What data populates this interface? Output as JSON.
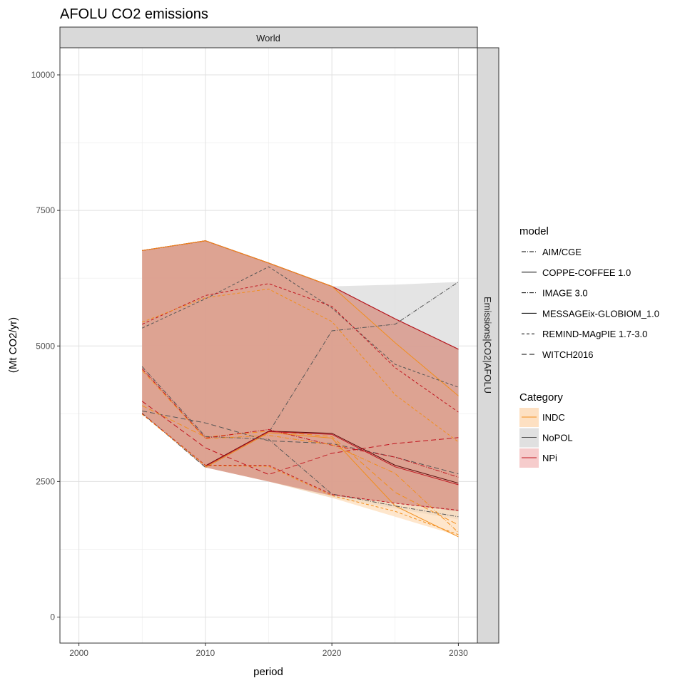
{
  "chart_data": {
    "type": "line",
    "title": "AFOLU CO2 emissions",
    "facet_top": "World",
    "facet_right": "Emissions|CO2|AFOLU",
    "xlabel": "period",
    "ylabel": "(Mt CO2/yr)",
    "xlim": [
      1998.5,
      2031.5
    ],
    "ylim": [
      -480,
      10500
    ],
    "x_ticks": [
      2000,
      2010,
      2020,
      2030
    ],
    "y_ticks": [
      0,
      2500,
      5000,
      7500,
      10000
    ],
    "grid": true,
    "legend_placement": "right",
    "model_legend": {
      "title": "model",
      "items": [
        {
          "label": "AIM/CGE",
          "dash": "6 2 1 2"
        },
        {
          "label": "COPPE-COFFEE 1.0",
          "dash": ""
        },
        {
          "label": "IMAGE 3.0",
          "dash": "6 2 1 2"
        },
        {
          "label": "MESSAGEix-GLOBIOM_1.0",
          "dash": ""
        },
        {
          "label": "REMIND-MAgPIE 1.7-3.0",
          "dash": "4 3"
        },
        {
          "label": "WITCH2016",
          "dash": "7 4"
        }
      ]
    },
    "category_legend": {
      "title": "Category",
      "items": [
        {
          "label": "INDC",
          "line": "#f28e1c",
          "fill": "#fde0c2"
        },
        {
          "label": "NoPOL",
          "line": "#555555",
          "fill": "#e0e0e0"
        },
        {
          "label": "NPi",
          "line": "#c0141e",
          "fill": "#f6cccc"
        }
      ]
    },
    "ribbons": [
      {
        "category": "NoPOL",
        "color": "#d9d9d9",
        "opacity": 0.7,
        "x": [
          2005,
          2010,
          2015,
          2020,
          2025,
          2030
        ],
        "upper": [
          6760,
          6940,
          6530,
          6100,
          6130,
          6180
        ],
        "lower": [
          3760,
          2760,
          2500,
          2200,
          2000,
          1800
        ]
      },
      {
        "category": "INDC",
        "color": "#fdd9b0",
        "opacity": 0.65,
        "x": [
          2005,
          2010,
          2015,
          2020,
          2025,
          2030
        ],
        "upper": [
          6760,
          6940,
          6530,
          6100,
          5060,
          4080
        ],
        "lower": [
          3760,
          2760,
          2500,
          2200,
          1850,
          1500
        ]
      },
      {
        "category": "NPi",
        "color": "#e8a8a8",
        "opacity": 0.55,
        "x": [
          2005,
          2010,
          2015,
          2020,
          2025,
          2030
        ],
        "upper": [
          6760,
          6940,
          6530,
          6100,
          5500,
          4940
        ],
        "lower": [
          3760,
          2760,
          2500,
          2240,
          2100,
          1950
        ]
      },
      {
        "category": "NPi",
        "color": "#cf8a76",
        "opacity": 0.55,
        "x": [
          2005,
          2010,
          2015,
          2020,
          2025,
          2030
        ],
        "upper": [
          6760,
          6940,
          6530,
          6100,
          5500,
          4940
        ],
        "lower": [
          3760,
          2760,
          2500,
          2240,
          2100,
          1950
        ]
      }
    ],
    "series": [
      {
        "model": "MESSAGEix-GLOBIOM_1.0",
        "category": "NoPOL",
        "color": "#5a0a0a",
        "dash": "",
        "x": [
          2005,
          2010,
          2015,
          2020,
          2025,
          2030
        ],
        "y": [
          6760,
          6940,
          6530,
          6100,
          5500,
          4940
        ]
      },
      {
        "model": "MESSAGEix-GLOBIOM_1.0",
        "category": "NPi",
        "color": "#c0141e",
        "dash": "",
        "x": [
          2005,
          2010,
          2015,
          2020,
          2025,
          2030
        ],
        "y": [
          6760,
          6940,
          6530,
          6100,
          5500,
          4940
        ]
      },
      {
        "model": "MESSAGEix-GLOBIOM_1.0",
        "category": "INDC",
        "color": "#f28e1c",
        "dash": "",
        "x": [
          2005,
          2010,
          2015,
          2020,
          2025,
          2030
        ],
        "y": [
          6760,
          6940,
          6530,
          6100,
          5060,
          4080
        ]
      },
      {
        "model": "IMAGE 3.0",
        "category": "NoPOL",
        "color": "#555555",
        "dash": "6 2 1 2",
        "x": [
          2005,
          2010,
          2015,
          2020,
          2025,
          2030
        ],
        "y": [
          3760,
          2760,
          3400,
          5280,
          5400,
          6180
        ]
      },
      {
        "model": "REMIND-MAgPIE 1.7-3.0",
        "category": "NoPOL",
        "color": "#555555",
        "dash": "4 3",
        "x": [
          2005,
          2010,
          2015,
          2020,
          2025,
          2030
        ],
        "y": [
          5330,
          5870,
          6460,
          5700,
          4660,
          4240
        ]
      },
      {
        "model": "REMIND-MAgPIE 1.7-3.0",
        "category": "NPi",
        "color": "#c0141e",
        "dash": "4 3",
        "x": [
          2005,
          2010,
          2015,
          2020,
          2025,
          2030
        ],
        "y": [
          5400,
          5930,
          6150,
          5730,
          4600,
          3780
        ]
      },
      {
        "model": "REMIND-MAgPIE 1.7-3.0",
        "category": "INDC",
        "color": "#f28e1c",
        "dash": "4 3",
        "x": [
          2005,
          2010,
          2015,
          2020,
          2025,
          2030
        ],
        "y": [
          5440,
          5890,
          6050,
          5450,
          4100,
          3230
        ]
      },
      {
        "model": "WITCH2016",
        "category": "NoPOL",
        "color": "#555555",
        "dash": "7 4",
        "x": [
          2005,
          2010,
          2015,
          2020,
          2025,
          2030
        ],
        "y": [
          3800,
          3580,
          3250,
          3200,
          2950,
          2640
        ]
      },
      {
        "model": "WITCH2016",
        "category": "NPi",
        "color": "#c0141e",
        "dash": "7 4",
        "x": [
          2005,
          2010,
          2015,
          2020,
          2025,
          2030
        ],
        "y": [
          3980,
          3120,
          2630,
          3020,
          3200,
          3310
        ]
      },
      {
        "model": "WITCH2016",
        "category": "INDC",
        "color": "#f28e1c",
        "dash": "7 4",
        "x": [
          2005,
          2010,
          2015,
          2020,
          2025,
          2030
        ],
        "y": [
          3900,
          3320,
          3430,
          3330,
          2300,
          1700
        ]
      },
      {
        "model": "COPPE-COFFEE 1.0",
        "category": "NoPOL",
        "color": "#5a0a0a",
        "dash": "",
        "x": [
          2010,
          2015,
          2020,
          2025,
          2030
        ],
        "y": [
          2790,
          3430,
          3390,
          2800,
          2470
        ]
      },
      {
        "model": "COPPE-COFFEE 1.0",
        "category": "NPi",
        "color": "#c0141e",
        "dash": "",
        "x": [
          2010,
          2015,
          2020,
          2025,
          2030
        ],
        "y": [
          2780,
          3420,
          3370,
          2770,
          2440
        ]
      },
      {
        "model": "COPPE-COFFEE 1.0",
        "category": "INDC",
        "color": "#f28e1c",
        "dash": "",
        "x": [
          2010,
          2015,
          2020,
          2025,
          2030
        ],
        "y": [
          2760,
          3400,
          3300,
          2050,
          1480
        ]
      },
      {
        "model": "AIM/CGE",
        "category": "NoPOL",
        "color": "#555555",
        "dash": "6 2 1 2",
        "x": [
          2005,
          2010,
          2015,
          2020,
          2025,
          2030
        ],
        "y": [
          4620,
          3330,
          3280,
          2270,
          2050,
          1850
        ]
      },
      {
        "model": "AIM/CGE",
        "category": "NPi",
        "color": "#c0141e",
        "dash": "6 2 1 2",
        "x": [
          2005,
          2010,
          2015,
          2020,
          2025,
          2030
        ],
        "y": [
          4580,
          3300,
          3460,
          3170,
          2950,
          2580
        ]
      },
      {
        "model": "AIM/CGE",
        "category": "INDC",
        "color": "#f28e1c",
        "dash": "6 2 1 2",
        "x": [
          2005,
          2010,
          2015,
          2020,
          2025,
          2030
        ],
        "y": [
          4550,
          3290,
          3350,
          3180,
          2650,
          1560
        ]
      },
      {
        "model": "REMIND-MAgPIE 1.7-3.0",
        "category": "NPi",
        "color": "#c0141e",
        "dash": "4 3",
        "x": [
          2005,
          2010,
          2015,
          2020,
          2025,
          2030
        ],
        "y": [
          3750,
          2800,
          2800,
          2260,
          2100,
          1970
        ]
      },
      {
        "model": "REMIND-MAgPIE 1.7-3.0",
        "category": "INDC",
        "color": "#f28e1c",
        "dash": "4 3",
        "x": [
          2005,
          2010,
          2015,
          2020,
          2025,
          2030
        ],
        "y": [
          3740,
          2790,
          2780,
          2240,
          1950,
          1520
        ]
      }
    ]
  }
}
